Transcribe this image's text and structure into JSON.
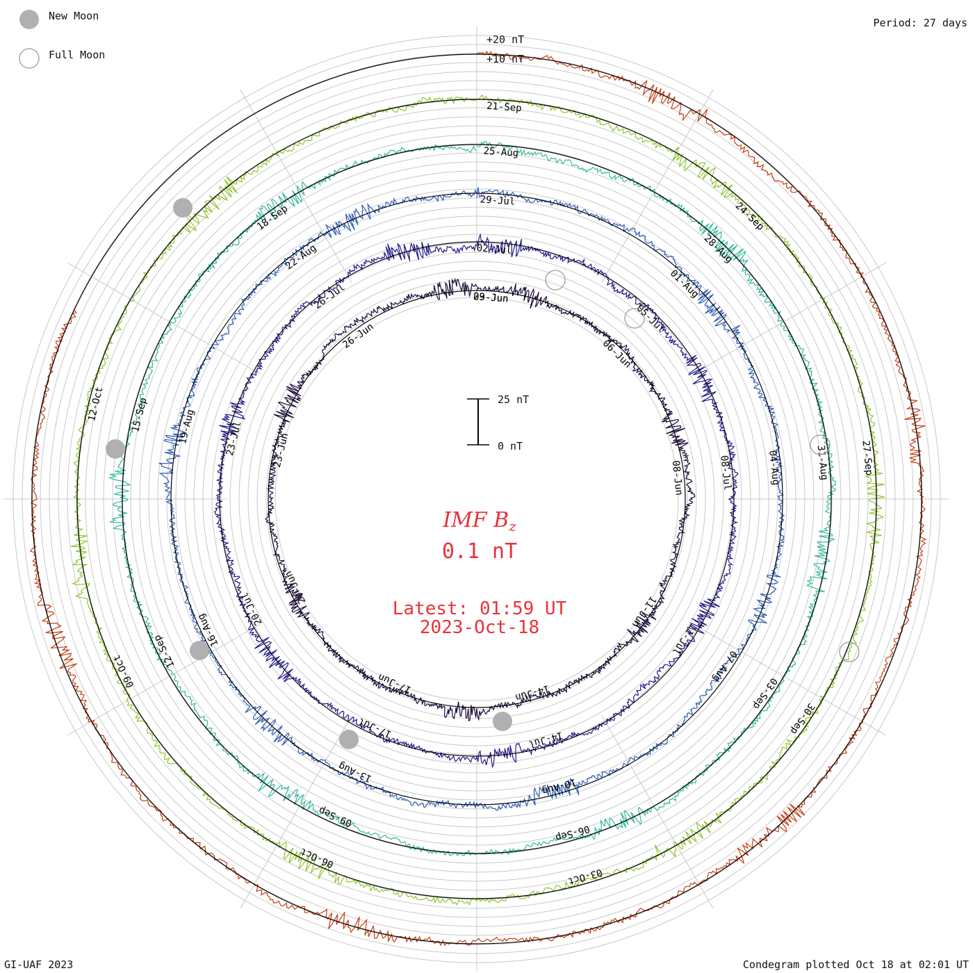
{
  "header": {
    "period": "Period: 27 days",
    "new_moon": "New Moon",
    "full_moon": "Full Moon"
  },
  "footer": {
    "credit": "GI-UAF 2023",
    "plotted": "Condegram plotted Oct 18 at 02:01 UT"
  },
  "center": {
    "title": "IMF B",
    "title_sub": "z",
    "value": "0.1 nT",
    "latest": "Latest: 01:59 UT",
    "date": "2023-Oct-18"
  },
  "scale": {
    "top": "25 nT",
    "bottom": "0 nT",
    "plus20": "+20 nT",
    "plus10": "+10 nT"
  },
  "colors": {
    "moon_new": "#b0b0b0",
    "moon_full": "#9a9a9a",
    "center_text": "#e8323a"
  },
  "chart_data": {
    "type": "line",
    "subtype": "condegram spiral",
    "period_days": 27,
    "units": "nT",
    "scale_bar_nT": 25,
    "series": [
      {
        "color": "#1a0a3a",
        "labels": [
          "03-Jun",
          "06-Jun",
          "08-Jun",
          "11-Jun",
          "14-Jun",
          "17-Jun",
          "20-Jun",
          "23-Jun",
          "26-Jun",
          "29-Jun"
        ]
      },
      {
        "color": "#20168c",
        "labels": [
          "02-Jul",
          "05-Jul",
          "08-Jul",
          "11-Jul",
          "14-Jul",
          "17-Jul",
          "20-Jul",
          "23-Jul",
          "26-Jul"
        ]
      },
      {
        "color": "#2b5cb8",
        "labels": [
          "29-Jul",
          "01-Aug",
          "04-Aug",
          "07-Aug",
          "10-Aug",
          "13-Aug",
          "16-Aug",
          "19-Aug",
          "22-Aug"
        ]
      },
      {
        "color": "#2fb89c",
        "labels": [
          "25-Aug",
          "28-Aug",
          "31-Aug",
          "03-Sep",
          "06-Sep",
          "09-Sep",
          "12-Sep",
          "15-Sep",
          "18-Sep"
        ]
      },
      {
        "color": "#8fc52a",
        "labels": [
          "21-Sep",
          "24-Sep",
          "27-Sep",
          "30-Sep",
          "03-Oct",
          "06-Oct",
          "09-Oct",
          "12-Oct"
        ]
      },
      {
        "color": "#c83a0e",
        "labels": []
      }
    ],
    "new_moons": [
      "17-Jun",
      "16-Jul",
      "15-Aug",
      "14-Sep",
      "14-Oct"
    ],
    "full_moons": [
      "03-Jul",
      "01-Aug",
      "31-Aug",
      "29-Sep"
    ]
  }
}
